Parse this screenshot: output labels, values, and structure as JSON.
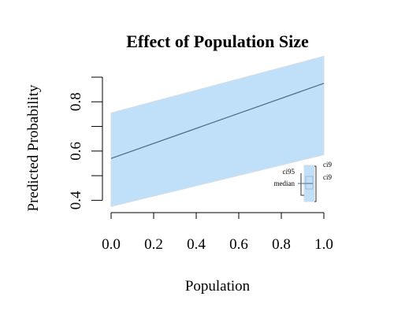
{
  "chart_data": {
    "type": "line",
    "title": "Effect of Population Size",
    "xlabel": "Population",
    "ylabel": "Predicted Probability",
    "xlim": [
      0,
      1
    ],
    "ylim": [
      0.35,
      0.9
    ],
    "x_ticks": [
      "0.0",
      "0.2",
      "0.4",
      "0.6",
      "0.8",
      "1.0"
    ],
    "y_ticks": [
      "0.4",
      "0.6",
      "0.8"
    ],
    "grid": false,
    "series": [
      {
        "x": [
          0,
          1
        ],
        "median": [
          0.57,
          0.875
        ],
        "ci95_lower": [
          0.375,
          0.585
        ],
        "ci95_upper": [
          0.755,
          0.985
        ]
      }
    ],
    "legend": {
      "placement": "bottom-right",
      "left_labels": [
        "ci95",
        "median"
      ],
      "right_labels": [
        "ci9",
        "ci9"
      ]
    },
    "colors": {
      "band": "#bfe0f8",
      "line": "#4a6a88",
      "axis": "#000000"
    }
  }
}
